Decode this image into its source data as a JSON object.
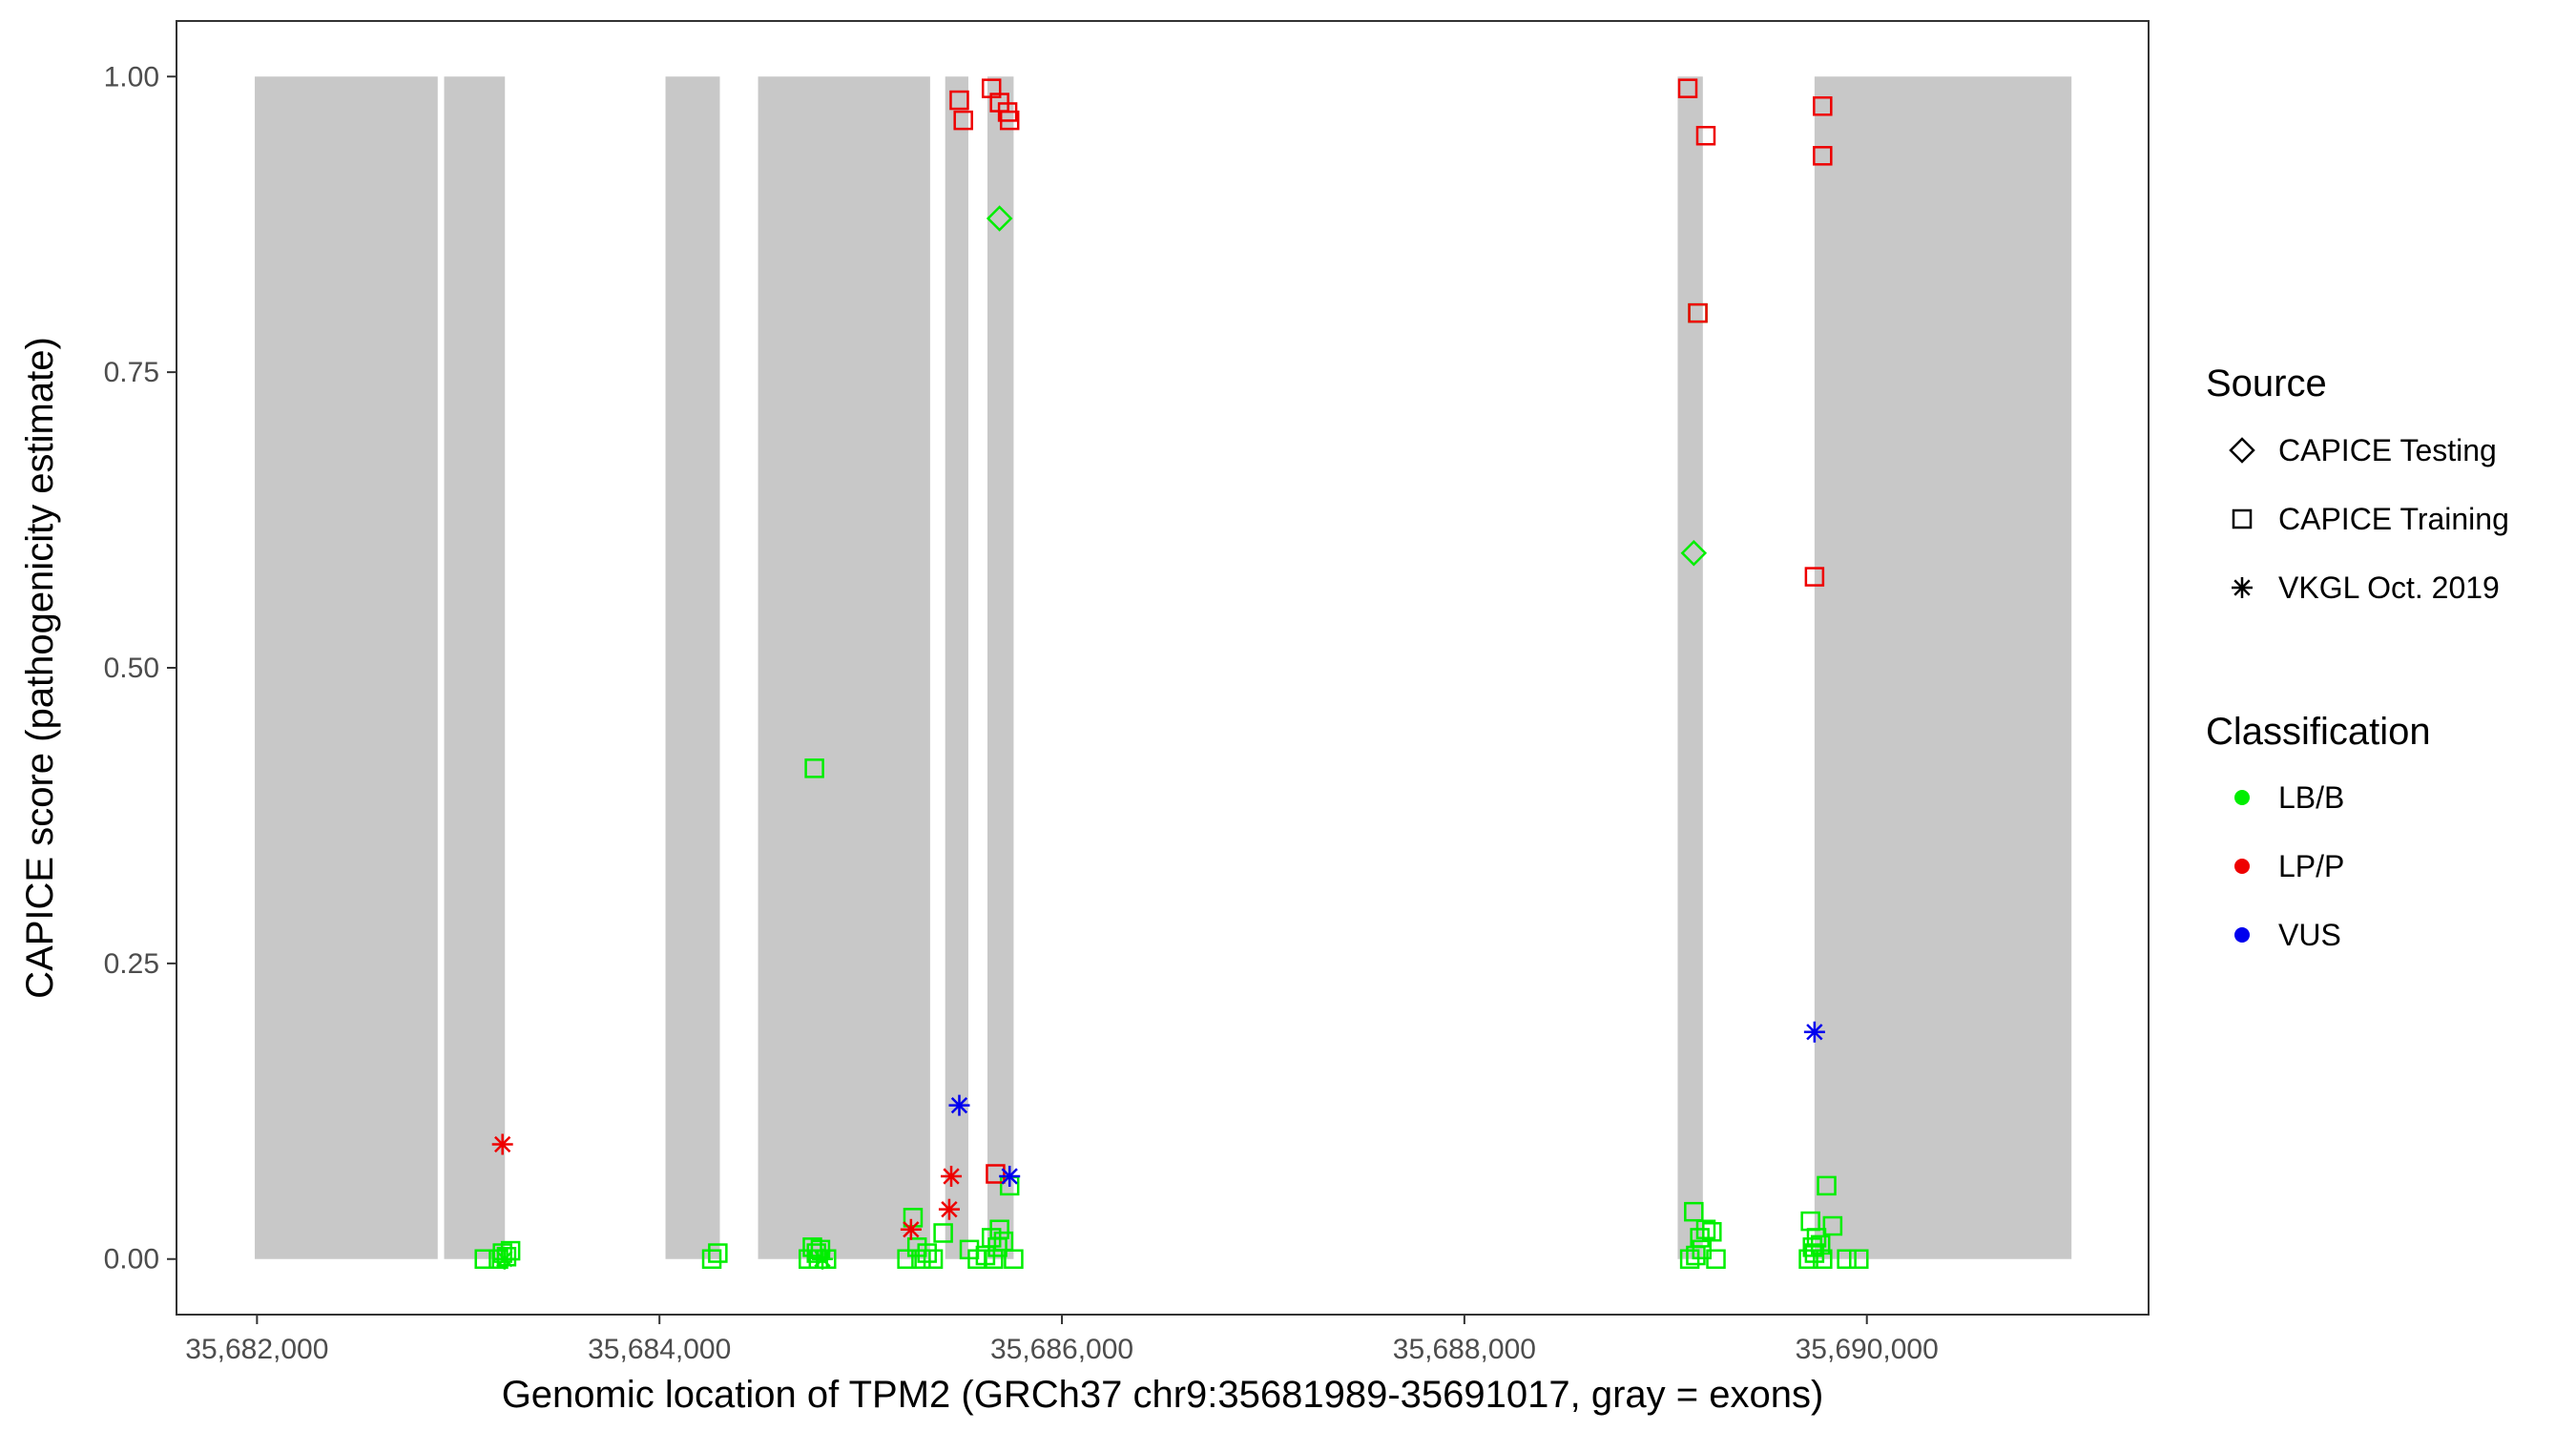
{
  "chart_data": {
    "type": "scatter",
    "title": "",
    "xlabel": "Genomic location of TPM2 (GRCh37 chr9:35681989-35691017, gray = exons)",
    "ylabel": "CAPICE score (pathogenicity estimate)",
    "xlim": [
      35681600,
      35691400
    ],
    "ylim": [
      -0.047,
      1.047
    ],
    "grid": false,
    "x_ticks": [
      {
        "value": 35682000,
        "label": "35,682,000"
      },
      {
        "value": 35684000,
        "label": "35,684,000"
      },
      {
        "value": 35686000,
        "label": "35,686,000"
      },
      {
        "value": 35688000,
        "label": "35,688,000"
      },
      {
        "value": 35690000,
        "label": "35,690,000"
      }
    ],
    "y_ticks": [
      {
        "value": 0.0,
        "label": "0.00"
      },
      {
        "value": 0.25,
        "label": "0.25"
      },
      {
        "value": 0.5,
        "label": "0.50"
      },
      {
        "value": 0.75,
        "label": "0.75"
      },
      {
        "value": 1.0,
        "label": "1.00"
      }
    ],
    "exons": [
      [
        35681989,
        35682898
      ],
      [
        35682930,
        35683232
      ],
      [
        35684030,
        35684300
      ],
      [
        35684490,
        35685345
      ],
      [
        35685420,
        35685535
      ],
      [
        35685630,
        35685760
      ],
      [
        35689060,
        35689185
      ],
      [
        35689740,
        35691017
      ]
    ],
    "legend": {
      "position": "right",
      "source": {
        "title": "Source",
        "items": [
          {
            "label": "CAPICE Testing",
            "shape": "diamond"
          },
          {
            "label": "CAPICE Training",
            "shape": "square"
          },
          {
            "label": "VKGL Oct. 2019",
            "shape": "asterisk"
          }
        ]
      },
      "classification": {
        "title": "Classification",
        "items": [
          {
            "label": "LB/B",
            "color": "#00ee00"
          },
          {
            "label": "LP/P",
            "color": "#ee0000"
          },
          {
            "label": "VUS",
            "color": "#0000ee"
          }
        ]
      }
    },
    "series": [
      {
        "name": "LB/B",
        "color": "#00ee00",
        "points": [
          {
            "x": 35683130,
            "y": 0.0,
            "shape": "square"
          },
          {
            "x": 35683200,
            "y": 0.0,
            "shape": "square"
          },
          {
            "x": 35683220,
            "y": 0.005,
            "shape": "square"
          },
          {
            "x": 35683240,
            "y": 0.002,
            "shape": "square"
          },
          {
            "x": 35683260,
            "y": 0.007,
            "shape": "square"
          },
          {
            "x": 35683230,
            "y": 0.0,
            "shape": "asterisk"
          },
          {
            "x": 35684260,
            "y": 0.0,
            "shape": "square"
          },
          {
            "x": 35684290,
            "y": 0.005,
            "shape": "square"
          },
          {
            "x": 35684770,
            "y": 0.415,
            "shape": "square"
          },
          {
            "x": 35684740,
            "y": 0.0,
            "shape": "square"
          },
          {
            "x": 35684760,
            "y": 0.01,
            "shape": "square"
          },
          {
            "x": 35684780,
            "y": 0.005,
            "shape": "square"
          },
          {
            "x": 35684790,
            "y": 0.0,
            "shape": "square"
          },
          {
            "x": 35684800,
            "y": 0.008,
            "shape": "square"
          },
          {
            "x": 35684810,
            "y": 0.0,
            "shape": "asterisk"
          },
          {
            "x": 35684830,
            "y": 0.0,
            "shape": "square"
          },
          {
            "x": 35685230,
            "y": 0.0,
            "shape": "square"
          },
          {
            "x": 35685260,
            "y": 0.035,
            "shape": "square"
          },
          {
            "x": 35685280,
            "y": 0.01,
            "shape": "square"
          },
          {
            "x": 35685300,
            "y": 0.0,
            "shape": "square"
          },
          {
            "x": 35685330,
            "y": 0.005,
            "shape": "square"
          },
          {
            "x": 35685360,
            "y": 0.0,
            "shape": "square"
          },
          {
            "x": 35685410,
            "y": 0.022,
            "shape": "square"
          },
          {
            "x": 35685540,
            "y": 0.008,
            "shape": "square"
          },
          {
            "x": 35685580,
            "y": 0.0,
            "shape": "square"
          },
          {
            "x": 35685620,
            "y": 0.003,
            "shape": "square"
          },
          {
            "x": 35685650,
            "y": 0.018,
            "shape": "square"
          },
          {
            "x": 35685660,
            "y": 0.0,
            "shape": "square"
          },
          {
            "x": 35685680,
            "y": 0.01,
            "shape": "square"
          },
          {
            "x": 35685690,
            "y": 0.025,
            "shape": "square"
          },
          {
            "x": 35685710,
            "y": 0.015,
            "shape": "square"
          },
          {
            "x": 35685740,
            "y": 0.062,
            "shape": "square"
          },
          {
            "x": 35685760,
            "y": 0.0,
            "shape": "square"
          },
          {
            "x": 35685690,
            "y": 0.88,
            "shape": "diamond"
          },
          {
            "x": 35689140,
            "y": 0.597,
            "shape": "diamond"
          },
          {
            "x": 35689160,
            "y": 0.8,
            "shape": "square"
          },
          {
            "x": 35689140,
            "y": 0.04,
            "shape": "square"
          },
          {
            "x": 35689120,
            "y": 0.0,
            "shape": "square"
          },
          {
            "x": 35689150,
            "y": 0.003,
            "shape": "square"
          },
          {
            "x": 35689170,
            "y": 0.018,
            "shape": "square"
          },
          {
            "x": 35689200,
            "y": 0.025,
            "shape": "square"
          },
          {
            "x": 35689230,
            "y": 0.023,
            "shape": "square"
          },
          {
            "x": 35689250,
            "y": 0.0,
            "shape": "square"
          },
          {
            "x": 35689180,
            "y": 0.008,
            "shape": "square"
          },
          {
            "x": 35689720,
            "y": 0.032,
            "shape": "square"
          },
          {
            "x": 35689710,
            "y": 0.0,
            "shape": "square"
          },
          {
            "x": 35689730,
            "y": 0.01,
            "shape": "square"
          },
          {
            "x": 35689740,
            "y": 0.005,
            "shape": "square"
          },
          {
            "x": 35689750,
            "y": 0.018,
            "shape": "square"
          },
          {
            "x": 35689770,
            "y": 0.012,
            "shape": "square"
          },
          {
            "x": 35689780,
            "y": 0.0,
            "shape": "square"
          },
          {
            "x": 35689800,
            "y": 0.062,
            "shape": "square"
          },
          {
            "x": 35689830,
            "y": 0.028,
            "shape": "square"
          },
          {
            "x": 35689900,
            "y": 0.0,
            "shape": "square"
          },
          {
            "x": 35689960,
            "y": 0.0,
            "shape": "square"
          }
        ]
      },
      {
        "name": "LP/P",
        "color": "#ee0000",
        "points": [
          {
            "x": 35683220,
            "y": 0.097,
            "shape": "asterisk"
          },
          {
            "x": 35685250,
            "y": 0.025,
            "shape": "asterisk"
          },
          {
            "x": 35685440,
            "y": 0.042,
            "shape": "asterisk"
          },
          {
            "x": 35685450,
            "y": 0.07,
            "shape": "asterisk"
          },
          {
            "x": 35685670,
            "y": 0.072,
            "shape": "square"
          },
          {
            "x": 35685490,
            "y": 0.98,
            "shape": "square"
          },
          {
            "x": 35685510,
            "y": 0.963,
            "shape": "square"
          },
          {
            "x": 35685650,
            "y": 0.99,
            "shape": "square"
          },
          {
            "x": 35685690,
            "y": 0.978,
            "shape": "square"
          },
          {
            "x": 35685730,
            "y": 0.97,
            "shape": "square"
          },
          {
            "x": 35685740,
            "y": 0.963,
            "shape": "square"
          },
          {
            "x": 35689110,
            "y": 0.99,
            "shape": "square"
          },
          {
            "x": 35689200,
            "y": 0.95,
            "shape": "square"
          },
          {
            "x": 35689160,
            "y": 0.8,
            "shape": "square"
          },
          {
            "x": 35689780,
            "y": 0.975,
            "shape": "square"
          },
          {
            "x": 35689780,
            "y": 0.933,
            "shape": "square"
          },
          {
            "x": 35689740,
            "y": 0.577,
            "shape": "square"
          }
        ]
      },
      {
        "name": "VUS",
        "color": "#0000ee",
        "points": [
          {
            "x": 35685490,
            "y": 0.13,
            "shape": "asterisk"
          },
          {
            "x": 35685740,
            "y": 0.07,
            "shape": "asterisk"
          },
          {
            "x": 35689740,
            "y": 0.192,
            "shape": "asterisk"
          }
        ]
      }
    ]
  }
}
